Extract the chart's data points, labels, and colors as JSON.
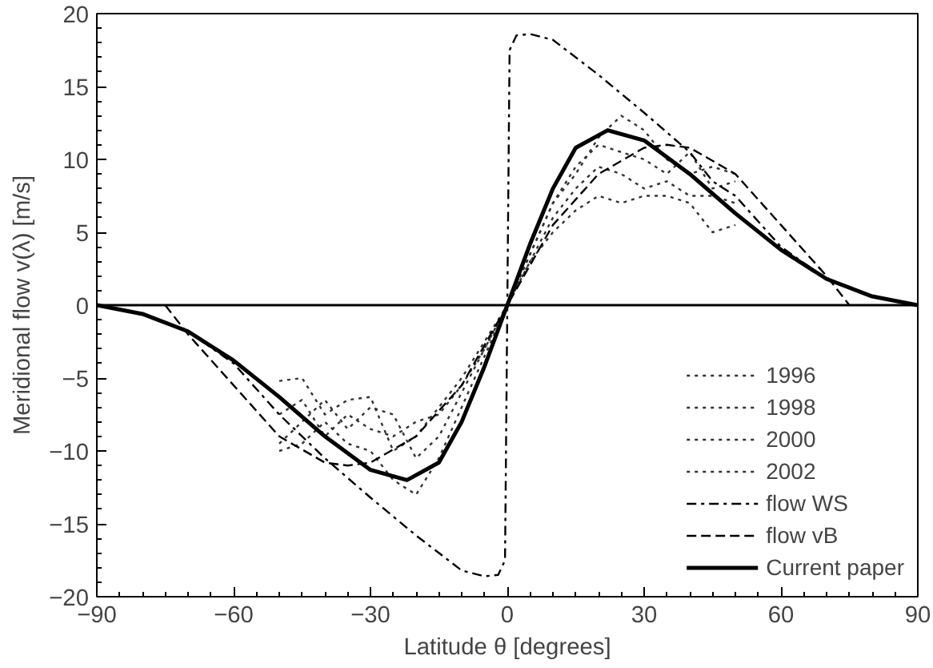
{
  "chart_data": {
    "type": "line",
    "xlabel": "Latitude θ [degrees]",
    "ylabel": "Meridional flow v(λ) [m/s]",
    "xlim": [
      -90,
      90
    ],
    "ylim": [
      -20,
      20
    ],
    "xticks": [
      -90,
      -60,
      -30,
      0,
      30,
      60,
      90
    ],
    "yticks": [
      -20,
      -15,
      -10,
      -5,
      0,
      5,
      10,
      15,
      20
    ],
    "grid": false,
    "legend": "bottom right",
    "ref_lines": [
      {
        "axis": "y",
        "value": 0,
        "color": "#000000",
        "line_style": "solid"
      }
    ],
    "series": [
      {
        "name": "1996",
        "color": "#333333",
        "line_style": "dotted",
        "x": [
          -50,
          -45,
          -40,
          -35,
          -30,
          -25,
          -20,
          -15,
          -10,
          -5,
          0,
          5,
          10,
          15,
          20,
          25,
          30,
          35,
          40,
          45,
          50
        ],
        "values": [
          -5.2,
          -5,
          -7.5,
          -6.5,
          -6.3,
          -10,
          -9,
          -7,
          -5,
          -2.5,
          0,
          3.5,
          7,
          9,
          11.5,
          13,
          12,
          10,
          9,
          9.5,
          9
        ]
      },
      {
        "name": "1998",
        "color": "#333333",
        "line_style": "dotted",
        "x": [
          -50,
          -45,
          -40,
          -35,
          -30,
          -25,
          -20,
          -15,
          -10,
          -5,
          0,
          5,
          10,
          15,
          20,
          25,
          30,
          35,
          40,
          45,
          50
        ],
        "values": [
          -9.5,
          -8,
          -6.5,
          -8.5,
          -7,
          -7.5,
          -10.5,
          -9,
          -6,
          -3,
          0,
          3,
          6,
          8,
          9.5,
          9,
          8,
          8.5,
          7.5,
          7.5,
          7
        ]
      },
      {
        "name": "2000",
        "color": "#333333",
        "line_style": "dotted",
        "x": [
          -50,
          -45,
          -40,
          -35,
          -30,
          -25,
          -20,
          -15,
          -10,
          -5,
          0,
          5,
          10,
          15,
          20,
          25,
          30,
          35,
          40,
          45,
          50
        ],
        "values": [
          -7.5,
          -6.5,
          -9,
          -7.5,
          -8.5,
          -9,
          -8,
          -7.5,
          -5.5,
          -3,
          0,
          3,
          5,
          6.5,
          7.5,
          7,
          7.5,
          7.5,
          7,
          5,
          5.5
        ]
      },
      {
        "name": "2002",
        "color": "#333333",
        "line_style": "dotted",
        "x": [
          -50,
          -45,
          -40,
          -35,
          -30,
          -25,
          -20,
          -15,
          -10,
          -5,
          0,
          5,
          10,
          15,
          20,
          25,
          30,
          35,
          40,
          45,
          50
        ],
        "values": [
          -10,
          -9.5,
          -8,
          -9.5,
          -10,
          -12,
          -13,
          -10.5,
          -7,
          -3.5,
          0,
          3.5,
          7,
          9.5,
          11,
          10.5,
          10,
          9,
          10.5,
          8,
          8.5
        ]
      },
      {
        "name": "flow WS",
        "color": "#000000",
        "line_style": "dashdot",
        "x": [
          -90,
          -80,
          -70,
          -60,
          -50,
          -40,
          -30,
          -20,
          -10,
          -5,
          -2,
          -0.5,
          0,
          0.5,
          2,
          5,
          10,
          20,
          30,
          40,
          45,
          50,
          60,
          70,
          80,
          90
        ],
        "values": [
          0,
          -0.6,
          -1.8,
          -4,
          -7.5,
          -10.5,
          -13.2,
          -15.8,
          -18.2,
          -18.6,
          -18.5,
          -17.5,
          0,
          17.5,
          18.5,
          18.6,
          18.2,
          15.8,
          13.2,
          10.5,
          8.5,
          7.5,
          4,
          1.8,
          0.6,
          0
        ]
      },
      {
        "name": "flow vB",
        "color": "#000000",
        "line_style": "dashed",
        "x": [
          -75,
          -70,
          -60,
          -50,
          -40,
          -35,
          -30,
          -20,
          -10,
          0,
          10,
          20,
          30,
          35,
          40,
          50,
          60,
          70,
          75
        ],
        "values": [
          0,
          -2,
          -5.5,
          -9,
          -10.8,
          -11,
          -10.8,
          -9,
          -5.5,
          0,
          5.5,
          9,
          10.8,
          11,
          10.8,
          9,
          5.5,
          2,
          0
        ]
      },
      {
        "name": "Current paper",
        "color": "#000000",
        "line_style": "solid",
        "x": [
          -90,
          -80,
          -70,
          -60,
          -50,
          -40,
          -30,
          -22,
          -15,
          -10,
          -5,
          0,
          5,
          10,
          15,
          22,
          30,
          40,
          50,
          60,
          70,
          80,
          90
        ],
        "values": [
          0,
          -0.6,
          -1.8,
          -3.8,
          -6.3,
          -9,
          -11.3,
          -12,
          -10.8,
          -8,
          -4.2,
          0,
          4.2,
          8,
          10.8,
          12,
          11.3,
          9,
          6.3,
          3.8,
          1.8,
          0.6,
          0
        ]
      }
    ]
  }
}
